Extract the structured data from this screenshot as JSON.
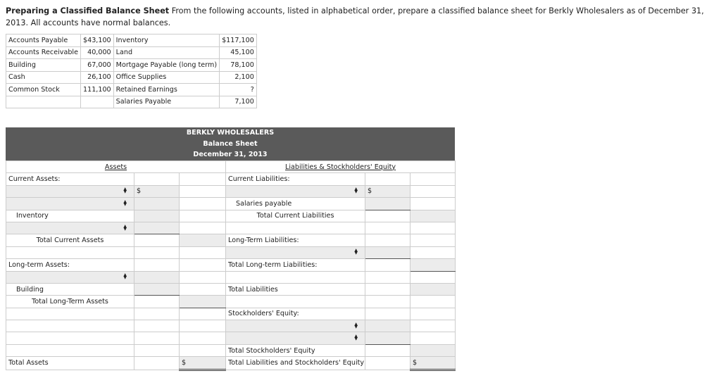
{
  "intro": {
    "title": "Preparing a Classified Balance Sheet",
    "text": "From the following accounts, listed in alphabetical order, prepare a classified balance sheet for Berkly Wholesalers as of December 31, 2013. All accounts have normal balances."
  },
  "accounts": [
    [
      "Accounts Payable",
      "$43,100",
      "Inventory",
      "$117,100"
    ],
    [
      "Accounts Receivable",
      "40,000",
      "Land",
      "45,100"
    ],
    [
      "Building",
      "67,000",
      "Mortgage Payable (long term)",
      "78,100"
    ],
    [
      "Cash",
      "26,100",
      "Office Supplies",
      "2,100"
    ],
    [
      "Common Stock",
      "111,100",
      "Retained Earnings",
      "?"
    ],
    [
      "",
      "",
      "Salaries Payable",
      "7,100"
    ]
  ],
  "sheet": {
    "company": "BERKLY WHOLESALERS",
    "statement": "Balance Sheet",
    "date": "December 31, 2013",
    "assets_heading": "Assets",
    "liabilities_heading": "Liabilities & Stockholders' Equity",
    "select_icon": "up-down-arrows-icon",
    "rows": [
      [
        {
          "t": "Current Assets:"
        },
        {},
        {},
        {
          "t": "Current Liabilities:"
        },
        {},
        {}
      ],
      [
        {
          "k": "sel"
        },
        {
          "k": "sh",
          "t": "$"
        },
        {},
        {
          "k": "sel"
        },
        {
          "k": "sh",
          "t": "$"
        },
        {}
      ],
      [
        {
          "k": "sel"
        },
        {
          "k": "sh"
        },
        {},
        {
          "t": "Salaries payable",
          "k": "indent"
        },
        {
          "k": "sh ul"
        },
        {}
      ],
      [
        {
          "t": "Inventory",
          "k": "indent"
        },
        {
          "k": "sh"
        },
        {},
        {
          "t": "Total Current Liabilities",
          "k": "center"
        },
        {},
        {
          "k": "sh"
        }
      ],
      [
        {
          "k": "sel"
        },
        {
          "k": "sh ul"
        },
        {},
        {},
        {},
        {}
      ],
      [
        {
          "t": "Total Current Assets",
          "k": "center"
        },
        {},
        {
          "k": "sh"
        },
        {
          "t": "Long-Term Liabilities:"
        },
        {},
        {}
      ],
      [
        {},
        {},
        {},
        {
          "k": "sel"
        },
        {
          "k": "sh ul"
        },
        {}
      ],
      [
        {
          "t": "Long-term Assets:"
        },
        {},
        {},
        {
          "t": "Total Long-term Liabilities:"
        },
        {},
        {
          "k": "sh ul"
        }
      ],
      [
        {
          "k": "sel"
        },
        {
          "k": "sh"
        },
        {},
        {},
        {},
        {}
      ],
      [
        {
          "t": "Building",
          "k": "indent"
        },
        {
          "k": "sh ul"
        },
        {},
        {
          "t": "Total Liabilities"
        },
        {},
        {
          "k": "sh"
        }
      ],
      [
        {
          "t": "Total Long-Term Assets",
          "k": "center"
        },
        {},
        {
          "k": "sh ul"
        },
        {},
        {},
        {}
      ],
      [
        {},
        {},
        {},
        {
          "t": "Stockholders' Equity:"
        },
        {},
        {}
      ],
      [
        {},
        {},
        {},
        {
          "k": "sel"
        },
        {
          "k": "sh"
        },
        {}
      ],
      [
        {},
        {},
        {},
        {
          "k": "sel"
        },
        {
          "k": "sh ul"
        },
        {}
      ],
      [
        {},
        {},
        {},
        {
          "t": "Total Stockholders' Equity"
        },
        {},
        {
          "k": "sh"
        }
      ],
      [
        {
          "t": "Total Assets"
        },
        {},
        {
          "k": "sh dul",
          "t": "$"
        },
        {
          "t": "Total Liabilities and Stockholders' Equity"
        },
        {},
        {
          "k": "sh dul",
          "t": "$"
        }
      ]
    ]
  }
}
